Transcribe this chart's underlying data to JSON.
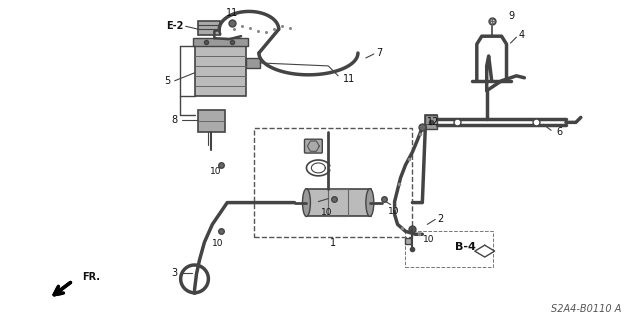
{
  "part_code": "S2A4-B0110 A",
  "bg_color": "#ffffff",
  "line_color": "#444444",
  "label_color": "#111111",
  "figsize": [
    6.4,
    3.2
  ],
  "dpi": 100
}
